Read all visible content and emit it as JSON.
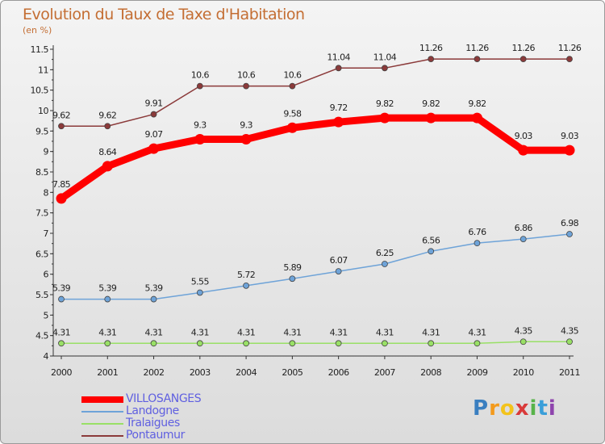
{
  "title": "Evolution du Taux de Taxe d'Habitation",
  "subtitle": "(en %)",
  "logo": {
    "letters": [
      "P",
      "r",
      "o",
      "x",
      "i",
      "t",
      "i"
    ],
    "colors": [
      "#3a7fc0",
      "#f39a1c",
      "#f3c31c",
      "#d93a3a",
      "#58b34a",
      "#3a9fd9",
      "#8e44ad"
    ]
  },
  "chart_data": {
    "type": "line",
    "categories": [
      "2000",
      "2001",
      "2002",
      "2003",
      "2004",
      "2005",
      "2006",
      "2007",
      "2008",
      "2009",
      "2010",
      "2011"
    ],
    "y_ticks": [
      "4",
      "4.5",
      "5",
      "5.5",
      "6",
      "6.5",
      "7",
      "7.5",
      "8",
      "8.5",
      "9",
      "9.5",
      "10",
      "10.5",
      "11",
      "11.5"
    ],
    "ylim": [
      4,
      11.5
    ],
    "grid": false,
    "legend_position": "bottom-left",
    "series": [
      {
        "name": "VILLOSANGES",
        "color": "#ff0000",
        "values": [
          7.85,
          8.64,
          9.07,
          9.3,
          9.3,
          9.58,
          9.72,
          9.82,
          9.82,
          9.82,
          9.03,
          9.03
        ],
        "labels": [
          "7.85",
          "8.64",
          "9.07",
          "9.3",
          "9.3",
          "9.58",
          "9.72",
          "9.82",
          "9.82",
          "9.82",
          "9.03",
          "9.03"
        ]
      },
      {
        "name": "Landogne",
        "color": "#6ea3d8",
        "values": [
          5.39,
          5.39,
          5.39,
          5.55,
          5.72,
          5.89,
          6.07,
          6.25,
          6.56,
          6.76,
          6.86,
          6.98
        ],
        "labels": [
          "5.39",
          "5.39",
          "5.39",
          "5.55",
          "5.72",
          "5.89",
          "6.07",
          "6.25",
          "6.56",
          "6.76",
          "6.86",
          "6.98"
        ]
      },
      {
        "name": "Tralaigues",
        "color": "#99e066",
        "values": [
          4.31,
          4.31,
          4.31,
          4.31,
          4.31,
          4.31,
          4.31,
          4.31,
          4.31,
          4.31,
          4.35,
          4.35
        ],
        "labels": [
          "4.31",
          "4.31",
          "4.31",
          "4.31",
          "4.31",
          "4.31",
          "4.31",
          "4.31",
          "4.31",
          "4.31",
          "4.35",
          "4.35"
        ]
      },
      {
        "name": "Pontaumur",
        "color": "#8b3a3a",
        "values": [
          9.62,
          9.62,
          9.91,
          10.6,
          10.6,
          10.6,
          11.04,
          11.04,
          11.26,
          11.26,
          11.26,
          11.26
        ],
        "labels": [
          "9.62",
          "9.62",
          "9.91",
          "10.6",
          "10.6",
          "10.6",
          "11.04",
          "11.04",
          "11.26",
          "11.26",
          "11.26",
          "11.26"
        ]
      }
    ]
  }
}
